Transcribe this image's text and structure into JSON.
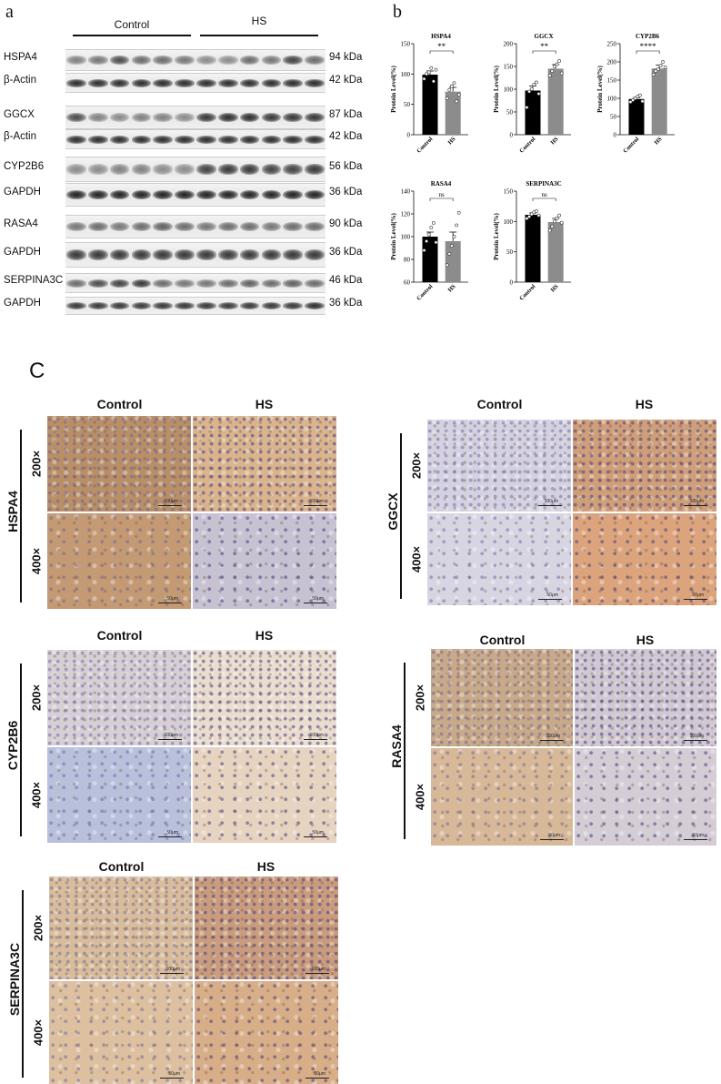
{
  "panel_a_label": "a",
  "panel_b_label": "b",
  "panel_c_label": "C",
  "western": {
    "group_labels": [
      "Control",
      "HS"
    ],
    "rows": [
      {
        "label": "HSPA4",
        "kda": "94 kDa"
      },
      {
        "label": "β-Actin",
        "kda": "42 kDa"
      },
      {
        "label": "GGCX",
        "kda": "87 kDa"
      },
      {
        "label": "β-Actin",
        "kda": "42 kDa"
      },
      {
        "label": "CYP2B6",
        "kda": "56 kDa"
      },
      {
        "label": "GAPDH",
        "kda": "36 kDa"
      },
      {
        "label": "RASA4",
        "kda": "90 kDa"
      },
      {
        "label": "GAPDH",
        "kda": "36 kDa"
      },
      {
        "label": "SERPINA3C",
        "kda": "46 kDa"
      },
      {
        "label": "GAPDH",
        "kda": "36 kDa"
      }
    ]
  },
  "chart_data": [
    {
      "type": "bar",
      "title": "HSPA4",
      "ylabel": "Protein Level(%)",
      "categories": [
        "Control",
        "HS"
      ],
      "values": [
        99,
        71
      ],
      "errors": [
        6,
        7
      ],
      "ylim": [
        0,
        150
      ],
      "yticks": [
        0,
        50,
        100,
        150
      ],
      "significance": "**",
      "points": [
        [
          92,
          100,
          103,
          110,
          88,
          107
        ],
        [
          60,
          74,
          80,
          85,
          55,
          66
        ]
      ],
      "colors": [
        "#000000",
        "#8c8c8c"
      ]
    },
    {
      "type": "bar",
      "title": "GGCX",
      "ylabel": "Protein Level(%)",
      "categories": [
        "Control",
        "HS"
      ],
      "values": [
        97,
        145
      ],
      "errors": [
        10,
        9
      ],
      "ylim": [
        0,
        200
      ],
      "yticks": [
        0,
        50,
        100,
        150,
        200
      ],
      "significance": "**",
      "points": [
        [
          60,
          95,
          100,
          110,
          115,
          90
        ],
        [
          130,
          140,
          150,
          155,
          162,
          135
        ]
      ],
      "colors": [
        "#000000",
        "#8c8c8c"
      ]
    },
    {
      "type": "bar",
      "title": "CYP2B6",
      "ylabel": "Protein Level(%)",
      "categories": [
        "Control",
        "HS"
      ],
      "values": [
        98,
        182
      ],
      "errors": [
        4,
        9
      ],
      "ylim": [
        0,
        250
      ],
      "yticks": [
        0,
        50,
        100,
        150,
        200,
        250
      ],
      "significance": "****",
      "points": [
        [
          90,
          95,
          100,
          105,
          108,
          92
        ],
        [
          165,
          175,
          180,
          190,
          200,
          185
        ]
      ],
      "colors": [
        "#000000",
        "#8c8c8c"
      ]
    },
    {
      "type": "bar",
      "title": "RASA4",
      "ylabel": "Protein Level(%)",
      "categories": [
        "Control",
        "HS"
      ],
      "values": [
        100,
        96
      ],
      "errors": [
        4,
        8
      ],
      "ylim": [
        60,
        140
      ],
      "yticks": [
        60,
        80,
        100,
        120,
        140
      ],
      "significance": "ns",
      "points": [
        [
          88,
          96,
          102,
          108,
          112,
          95
        ],
        [
          75,
          85,
          92,
          100,
          110,
          121
        ]
      ],
      "colors": [
        "#000000",
        "#8c8c8c"
      ]
    },
    {
      "type": "bar",
      "title": "SERPINA3C",
      "ylabel": "Protein Level(%)",
      "categories": [
        "Control",
        "HS"
      ],
      "values": [
        111,
        99
      ],
      "errors": [
        3,
        6
      ],
      "ylim": [
        0,
        150
      ],
      "yticks": [
        0,
        50,
        100,
        150
      ],
      "significance": "ns",
      "points": [
        [
          105,
          108,
          112,
          115,
          117,
          110
        ],
        [
          85,
          92,
          100,
          105,
          110,
          98
        ]
      ],
      "colors": [
        "#000000",
        "#8c8c8c"
      ]
    }
  ],
  "ihc": {
    "col_labels": [
      "Control",
      "HS"
    ],
    "mag_labels": [
      "200×",
      "400×"
    ],
    "scale_labels": [
      "100μm",
      "50μm"
    ],
    "blocks": [
      {
        "protein": "HSPA4",
        "stain": {
          "c200": "#b98f69",
          "c400": "#c49a74",
          "h200": "#d9b48e",
          "h400": "#c7c2d2"
        }
      },
      {
        "protein": "GGCX",
        "stain": {
          "c200": "#d4d1e1",
          "c400": "#d8d5e2",
          "h200": "#cf9e7a",
          "h400": "#dba47c"
        }
      },
      {
        "protein": "CYP2B6",
        "stain": {
          "c200": "#d7cfd5",
          "c400": "#b8c0dc",
          "h200": "#e9ddd0",
          "h400": "#e6d3c0"
        }
      },
      {
        "protein": "RASA4",
        "stain": {
          "c200": "#c8aa8a",
          "c400": "#d7b898",
          "h200": "#d0c8d2",
          "h400": "#d4cdd6"
        }
      },
      {
        "protein": "SERPINA3C",
        "stain": {
          "c200": "#d8bc9c",
          "c400": "#dcc0a0",
          "h200": "#c99c7e",
          "h400": "#d7ae88"
        }
      }
    ]
  }
}
